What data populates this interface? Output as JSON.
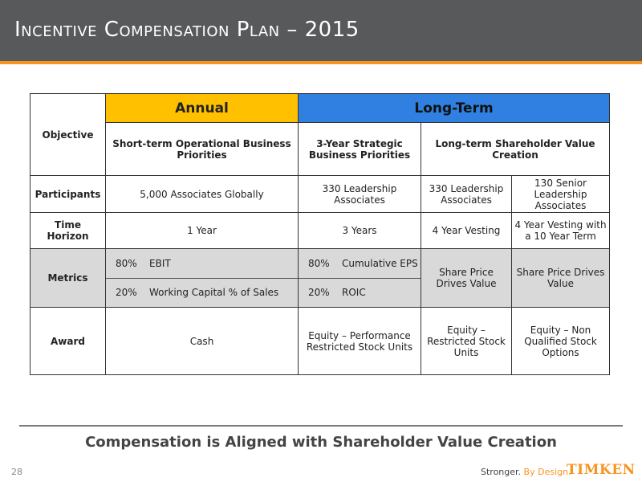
{
  "header": {
    "title": "Incentive Compensation Plan – 2015"
  },
  "table": {
    "group_annual": "Annual",
    "group_long": "Long-Term",
    "row_labels": {
      "objective": "Objective",
      "participants": "Participants",
      "time_horizon": "Time Horizon",
      "metrics": "Metrics",
      "award": "Award"
    },
    "objective": {
      "annual": "Short-term Operational Business Priorities",
      "strategic": "3-Year Strategic Business Priorities",
      "shareholder": "Long-term Shareholder Value Creation"
    },
    "participants": [
      "5,000  Associates Globally",
      "330 Leadership Associates",
      "330 Leadership Associates",
      "130 Senior Leadership Associates"
    ],
    "time_horizon": [
      "1 Year",
      "3 Years",
      "4 Year Vesting",
      "4 Year Vesting with a 10 Year Term"
    ],
    "metrics": {
      "annual": [
        {
          "pct": "80%",
          "label": "EBIT"
        },
        {
          "pct": "20%",
          "label": "Working Capital % of Sales"
        }
      ],
      "strategic": [
        {
          "pct": "80%",
          "label": "Cumulative EPS"
        },
        {
          "pct": "20%",
          "label": "ROIC"
        }
      ],
      "col3": "Share Price Drives Value",
      "col4": "Share Price Drives Value"
    },
    "award": [
      "Cash",
      "Equity – Performance Restricted Stock Units",
      "Equity – Restricted Stock Units",
      "Equity – Non Qualified Stock Options"
    ]
  },
  "footer": {
    "tagline": "Compensation is Aligned with Shareholder Value Creation",
    "page_number": "28",
    "brand_stronger": "Stronger.",
    "brand_by_design": "By Design.",
    "logo_text": "TIMKEN"
  },
  "colors": {
    "header_bg": "#58595b",
    "accent": "#f7941d",
    "annual": "#ffc000",
    "long_term": "#2f80e0",
    "metrics_bg": "#d9d9d9"
  }
}
